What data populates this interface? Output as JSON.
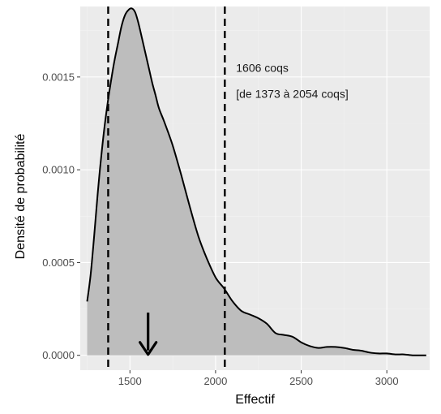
{
  "chart_data": {
    "type": "area",
    "title": "",
    "xlabel": "Effectif",
    "ylabel": "Densité de probabilité",
    "xlim": [
      1210,
      3250
    ],
    "ylim": [
      -8e-05,
      0.00188
    ],
    "x_ticks": [
      1500,
      2000,
      2500,
      3000
    ],
    "x_tick_labels": [
      "1500",
      "2000",
      "2500",
      "3000"
    ],
    "y_ticks": [
      0,
      0.0005,
      0.001,
      0.0015
    ],
    "y_tick_labels": [
      "0.0000",
      "0.0005",
      "0.0010",
      "0.0015"
    ],
    "grid": true,
    "legend": "none",
    "series": [
      {
        "x": [
          1250,
          1270,
          1290,
          1310,
          1330,
          1350,
          1370,
          1390,
          1410,
          1430,
          1450,
          1470,
          1490,
          1510,
          1530,
          1550,
          1570,
          1590,
          1610,
          1630,
          1650,
          1670,
          1700,
          1750,
          1800,
          1850,
          1900,
          1950,
          2000,
          2050,
          2100,
          2150,
          2200,
          2250,
          2300,
          2350,
          2400,
          2450,
          2500,
          2550,
          2600,
          2650,
          2700,
          2750,
          2800,
          2850,
          2900,
          2950,
          3000,
          3050,
          3100,
          3150,
          3200,
          3230
        ],
        "y": [
          0.00029,
          0.00043,
          0.00063,
          0.00085,
          0.00105,
          0.00122,
          0.00136,
          0.00148,
          0.00159,
          0.00168,
          0.00177,
          0.00183,
          0.00186,
          0.00187,
          0.00185,
          0.00179,
          0.00171,
          0.00163,
          0.00155,
          0.00147,
          0.0014,
          0.00133,
          0.00126,
          0.00113,
          0.00097,
          0.0008,
          0.00064,
          0.00052,
          0.00042,
          0.00036,
          0.00029,
          0.00024,
          0.00022,
          0.0002,
          0.00017,
          0.00012,
          0.00011,
          0.0001,
          7e-05,
          5e-05,
          4e-05,
          4.5e-05,
          4.5e-05,
          4e-05,
          3e-05,
          2.5e-05,
          1.5e-05,
          1e-05,
          1e-05,
          5e-06,
          5e-06,
          0.0,
          0.0,
          0.0
        ]
      }
    ],
    "vlines": [
      1373,
      2054
    ],
    "annotation": {
      "line1": "1606 coqs",
      "line2": "[de 1373 à 2054 coqs]",
      "x": 2120,
      "y1": 0.00155,
      "y2": 0.00141
    },
    "arrow": {
      "x": 1606,
      "y_top": 0.00023,
      "y_bottom": 0.0
    },
    "colors": {
      "panel_bg": "#ebebeb",
      "grid_major": "#ffffff",
      "grid_minor": "#f2f2f2",
      "fill": "#bdbdbd",
      "line": "#000000",
      "tick": "#333333",
      "tick_text": "#4d4d4d"
    }
  }
}
